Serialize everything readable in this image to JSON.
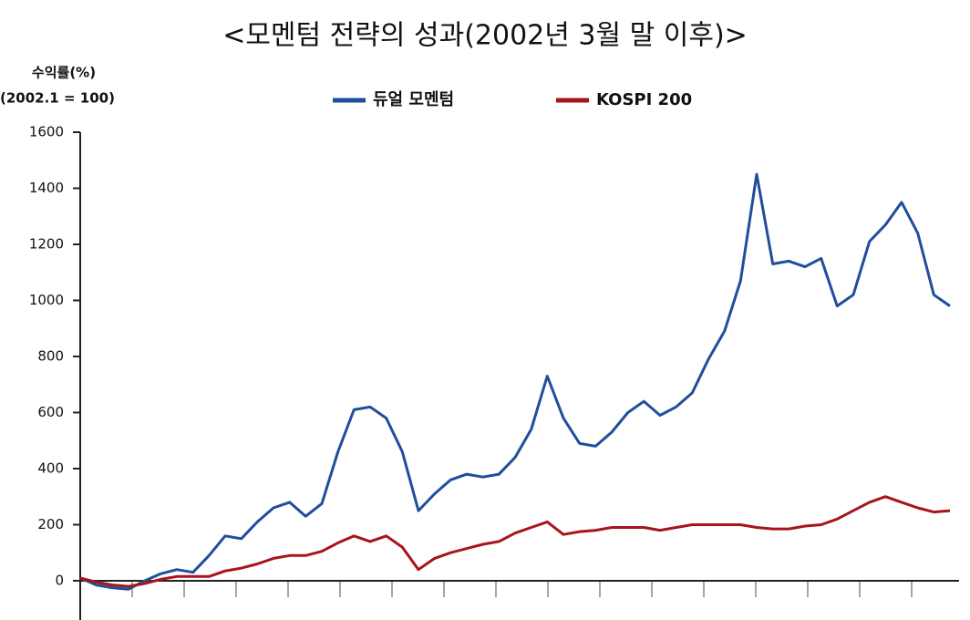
{
  "chart_data": {
    "type": "line",
    "title": "<모멘텀 전략의 성과(2002년 3월 말 이후)>",
    "y_label": "수익률(%)",
    "y_label_sub": "(2002.1 = 100)",
    "categories": [
      null,
      null,
      null,
      null,
      null,
      null,
      null,
      null,
      null,
      null,
      null,
      null,
      null,
      null,
      null,
      null,
      null,
      null,
      null,
      null,
      null,
      null,
      null,
      null,
      null,
      null,
      null,
      null,
      null,
      null,
      null,
      null,
      null,
      null,
      null,
      null,
      null,
      null,
      null,
      null,
      null,
      null,
      null,
      null,
      null,
      null,
      null,
      null,
      null,
      null,
      null,
      null,
      null,
      null,
      null
    ],
    "series": [
      {
        "name": "듀얼 모멘텀",
        "color": "#1f4e9c",
        "values": [
          10,
          -15,
          -25,
          -30,
          0,
          25,
          40,
          30,
          90,
          160,
          150,
          210,
          260,
          280,
          230,
          275,
          460,
          610,
          620,
          580,
          460,
          250,
          310,
          360,
          380,
          370,
          380,
          440,
          540,
          730,
          580,
          490,
          480,
          530,
          600,
          640,
          590,
          620,
          670,
          790,
          890,
          1070,
          1450,
          1130,
          1140,
          1120,
          1150,
          980,
          1020,
          1210,
          1270,
          1350,
          1240,
          1020,
          980
        ]
      },
      {
        "name": "KOSPI 200",
        "color": "#a8141c",
        "values": [
          10,
          -5,
          -15,
          -20,
          -10,
          5,
          15,
          15,
          15,
          35,
          45,
          60,
          80,
          90,
          90,
          105,
          135,
          160,
          140,
          160,
          120,
          40,
          80,
          100,
          115,
          130,
          140,
          170,
          190,
          210,
          165,
          175,
          180,
          190,
          190,
          190,
          180,
          190,
          200,
          200,
          200,
          200,
          190,
          185,
          185,
          195,
          200,
          220,
          250,
          280,
          300,
          280,
          260,
          245,
          250
        ]
      }
    ],
    "ylim": [
      -140,
      1600
    ],
    "yticks": [
      0,
      200,
      400,
      600,
      800,
      1000,
      1200,
      1400,
      1600
    ],
    "grid": false,
    "legend": "top"
  }
}
